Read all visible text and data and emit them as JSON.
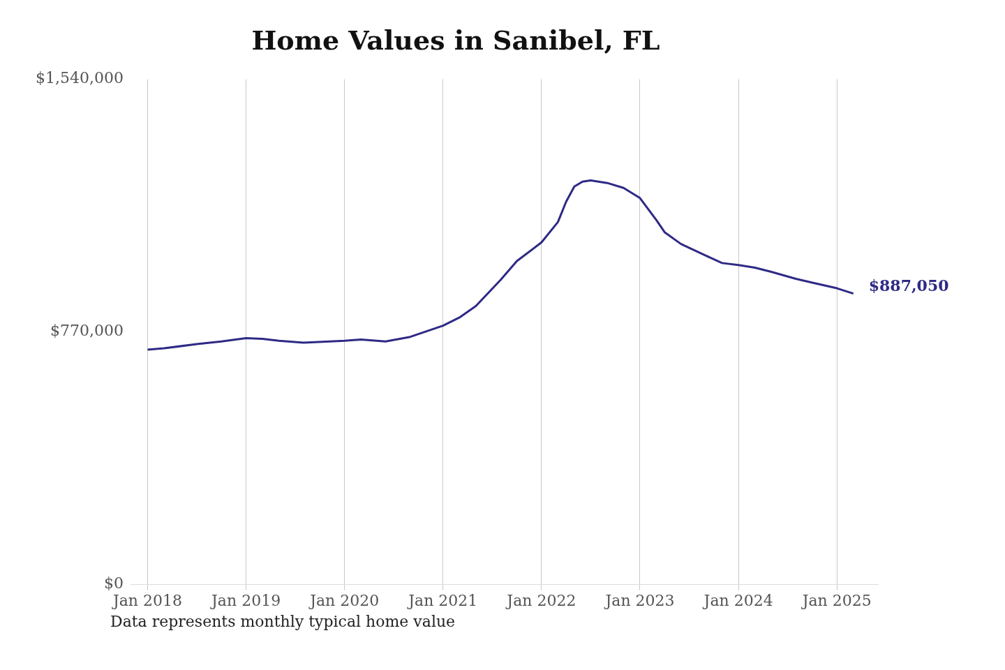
{
  "chart_data": {
    "type": "line",
    "title": "Home Values in Sanibel, FL",
    "x": [
      "2018-01",
      "2018-03",
      "2018-07",
      "2018-10",
      "2019-01",
      "2019-03",
      "2019-05",
      "2019-08",
      "2020-01",
      "2020-03",
      "2020-06",
      "2020-09",
      "2021-01",
      "2021-03",
      "2021-05",
      "2021-08",
      "2021-10",
      "2022-01",
      "2022-03",
      "2022-04",
      "2022-05",
      "2022-06",
      "2022-07",
      "2022-09",
      "2022-11",
      "2023-01",
      "2023-03",
      "2023-04",
      "2023-06",
      "2023-09",
      "2023-11",
      "2024-01",
      "2024-03",
      "2024-05",
      "2024-08",
      "2024-10",
      "2025-01",
      "2025-03"
    ],
    "series": [
      {
        "color": "#2e2a85",
        "values": [
          716000,
          720000,
          733000,
          741000,
          751000,
          749000,
          743000,
          737000,
          743000,
          747000,
          741000,
          755000,
          789000,
          814000,
          849000,
          928000,
          986000,
          1043000,
          1105000,
          1167000,
          1213000,
          1228000,
          1232000,
          1224000,
          1209000,
          1178000,
          1111000,
          1074000,
          1038000,
          1003000,
          980000,
          974000,
          966000,
          953000,
          932000,
          920000,
          903000,
          887050
        ],
        "value_labels": [
          null,
          null,
          null,
          null,
          null,
          null,
          null,
          null,
          null,
          null,
          null,
          null,
          null,
          null,
          null,
          null,
          null,
          null,
          null,
          null,
          null,
          null,
          null,
          null,
          null,
          null,
          null,
          null,
          null,
          null,
          null,
          null,
          null,
          null,
          null,
          null,
          null,
          "$887,050"
        ]
      }
    ],
    "xticks": [
      {
        "value": "2018-01",
        "label": "Jan 2018"
      },
      {
        "value": "2019-01",
        "label": "Jan 2019"
      },
      {
        "value": "2020-01",
        "label": "Jan 2020"
      },
      {
        "value": "2021-01",
        "label": "Jan 2021"
      },
      {
        "value": "2022-01",
        "label": "Jan 2022"
      },
      {
        "value": "2023-01",
        "label": "Jan 2023"
      },
      {
        "value": "2024-01",
        "label": "Jan 2024"
      },
      {
        "value": "2025-01",
        "label": "Jan 2025"
      }
    ],
    "xlim": [
      "2017-11",
      "2025-06"
    ],
    "ylim": [
      0,
      1540000
    ],
    "yticks": [
      {
        "value": 0,
        "label": "$0"
      },
      {
        "value": 770000,
        "label": "$770,000"
      },
      {
        "value": 1540000,
        "label": "$1,540,000"
      }
    ],
    "grid": "x",
    "legend": false,
    "marker": "none",
    "line_style": "solid",
    "annotations": [
      "Data represents monthly typical home value"
    ]
  }
}
